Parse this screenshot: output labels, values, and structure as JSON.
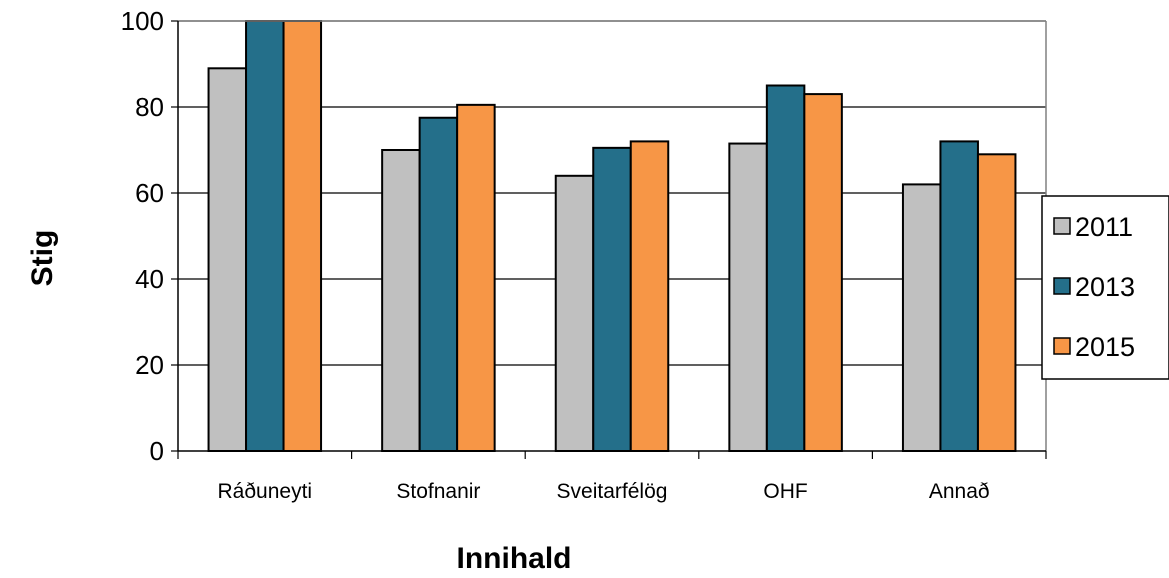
{
  "chart_data": {
    "type": "bar",
    "categories": [
      "Ráðuneyti",
      "Stofnanir",
      "Sveitarfélög",
      "OHF",
      "Annað"
    ],
    "series": [
      {
        "name": "2011",
        "values": [
          89,
          70,
          64,
          71.5,
          62
        ],
        "color": "#c0c0c0"
      },
      {
        "name": "2013",
        "values": [
          100,
          77.5,
          70.5,
          85,
          72
        ],
        "color": "#246f8a"
      },
      {
        "name": "2015",
        "values": [
          100,
          80.5,
          72,
          83,
          69
        ],
        "color": "#f79646"
      }
    ],
    "xlabel": "Innihald",
    "ylabel": "Stig",
    "ylim": [
      0,
      100
    ],
    "yticks": [
      0,
      20,
      40,
      60,
      80,
      100
    ],
    "grid": true,
    "legend_position": "right"
  }
}
